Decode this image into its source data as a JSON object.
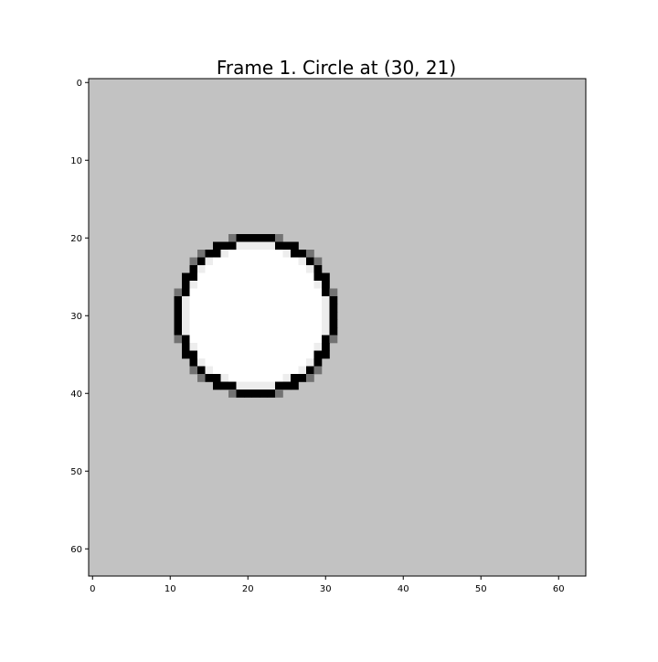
{
  "chart_data": {
    "type": "heatmap",
    "title": "Frame 1. Circle at (30, 21)",
    "xlabel": "",
    "ylabel": "",
    "grid": false,
    "x_range": [
      -0.5,
      63.5
    ],
    "y_range": [
      -0.5,
      63.5
    ],
    "y_inverted": true,
    "x_ticks": [
      "0",
      "10",
      "20",
      "30",
      "40",
      "50",
      "60"
    ],
    "y_ticks": [
      "0",
      "10",
      "20",
      "30",
      "40",
      "50",
      "60"
    ],
    "colormap": "gray",
    "background_value": 0.76,
    "image_size": [
      64,
      64
    ],
    "circle": {
      "center_row": 30,
      "center_col": 21,
      "radius": 10,
      "outline_value": 0.0,
      "interior_value": 1.0
    }
  }
}
